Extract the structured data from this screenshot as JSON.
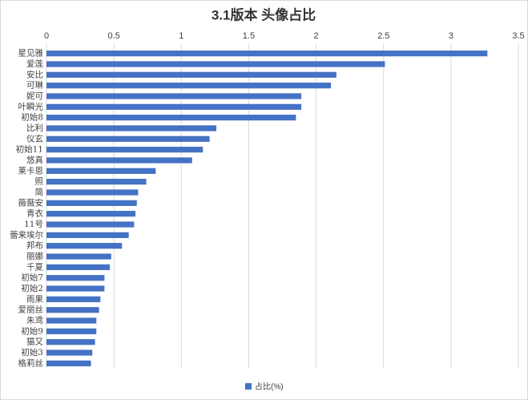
{
  "chart_data": {
    "type": "bar",
    "orientation": "horizontal",
    "title": "3.1版本 头像占比",
    "categories": [
      "星见雅",
      "爱莲",
      "安比",
      "可琳",
      "妮可",
      "叶瞬光",
      "初始8",
      "比利",
      "仪玄",
      "初始11",
      "悠真",
      "莱卡恩",
      "照",
      "简",
      "薇薇安",
      "青衣",
      "11号",
      "蕾来埃尔",
      "邦布",
      "丽娜",
      "千夏",
      "初始7",
      "初始2",
      "雨果",
      "爱丽丝",
      "朱鸢",
      "初始9",
      "猫又",
      "初始3",
      "格莉丝"
    ],
    "series": [
      {
        "name": "占比(%)",
        "color": "#4472c4",
        "values": [
          3.27,
          2.51,
          2.15,
          2.11,
          1.89,
          1.89,
          1.85,
          1.26,
          1.21,
          1.16,
          1.08,
          0.81,
          0.74,
          0.68,
          0.67,
          0.66,
          0.65,
          0.61,
          0.56,
          0.48,
          0.47,
          0.43,
          0.43,
          0.4,
          0.39,
          0.37,
          0.37,
          0.36,
          0.34,
          0.33
        ]
      }
    ],
    "xlim": [
      0,
      3.5
    ],
    "xticks": [
      0,
      0.5,
      1,
      1.5,
      2,
      2.5,
      3,
      3.5
    ],
    "grid": true,
    "legend": "bottom"
  }
}
